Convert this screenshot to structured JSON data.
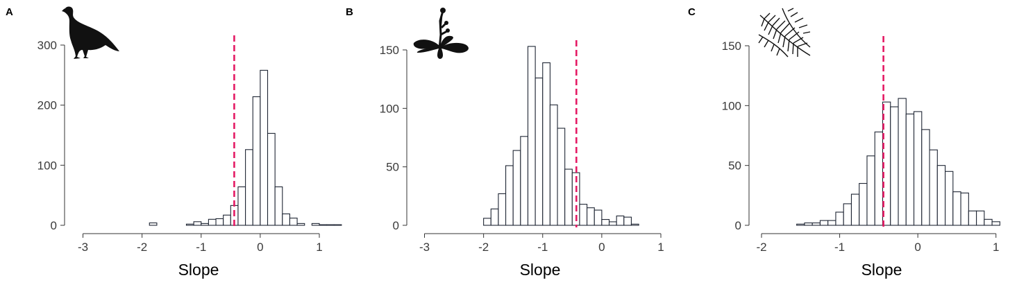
{
  "chart_data": [
    {
      "type": "bar",
      "panel_label": "A",
      "icon": "bird-silhouette-icon",
      "xlabel": "Slope",
      "ylabel": "",
      "xlim": [
        -3.1,
        1
      ],
      "ylim": [
        0,
        300
      ],
      "xticks": [
        -3,
        -2,
        -1,
        0,
        1
      ],
      "xtick_labels": [
        "-3",
        "-2",
        "-1",
        "0",
        "1"
      ],
      "yticks": [
        0,
        100,
        200,
        300
      ],
      "ytick_labels": [
        "0",
        "100",
        "200",
        "300"
      ],
      "bin_width": 0.125,
      "bin_start": -3.125,
      "values": [
        0,
        0,
        0,
        0,
        0,
        0,
        0,
        0,
        0,
        0,
        4,
        0,
        0,
        0,
        0,
        2,
        6,
        3,
        10,
        11,
        17,
        33,
        64,
        126,
        214,
        258,
        153,
        64,
        19,
        12,
        3,
        0,
        3,
        1,
        1,
        1
      ],
      "ref_line_x": -0.44,
      "ref_line_color": "#e41a64",
      "grid": false
    },
    {
      "type": "bar",
      "panel_label": "B",
      "icon": "plant-silhouette-icon",
      "xlabel": "Slope",
      "ylabel": "",
      "xlim": [
        -3.1,
        1
      ],
      "ylim": [
        0,
        150
      ],
      "xticks": [
        -3,
        -2,
        -1,
        0,
        1
      ],
      "xtick_labels": [
        "-3",
        "-2",
        "-1",
        "0",
        "1"
      ],
      "yticks": [
        0,
        50,
        100,
        150
      ],
      "ytick_labels": [
        "0",
        "50",
        "100",
        "150"
      ],
      "bin_width": 0.125,
      "bin_start": -3.125,
      "values": [
        0,
        0,
        0,
        0,
        0,
        0,
        0,
        0,
        0,
        6,
        14,
        27,
        51,
        64,
        76,
        153,
        126,
        139,
        103,
        83,
        48,
        45,
        18,
        15,
        13,
        5,
        3,
        8,
        7,
        1
      ],
      "ref_line_x": -0.43,
      "ref_line_color": "#e41a64",
      "grid": false
    },
    {
      "type": "bar",
      "panel_label": "C",
      "icon": "fern-silhouette-icon",
      "xlabel": "Slope",
      "ylabel": "",
      "xlim": [
        -2,
        1.1
      ],
      "ylim": [
        0,
        150
      ],
      "xticks": [
        -2,
        -1,
        0,
        1
      ],
      "xtick_labels": [
        "-2",
        "-1",
        "0",
        "1"
      ],
      "yticks": [
        0,
        50,
        100,
        150
      ],
      "ytick_labels": [
        "0",
        "50",
        "100",
        "150"
      ],
      "bin_width": 0.1,
      "bin_start": -2.05,
      "values": [
        0,
        0,
        0,
        0,
        0,
        1,
        2,
        2,
        4,
        4,
        11,
        18,
        26,
        35,
        58,
        78,
        103,
        99,
        106,
        93,
        95,
        80,
        63,
        50,
        45,
        28,
        27,
        12,
        12,
        5,
        3
      ],
      "ref_line_x": -0.44,
      "ref_line_color": "#e41a64",
      "grid": false
    }
  ]
}
